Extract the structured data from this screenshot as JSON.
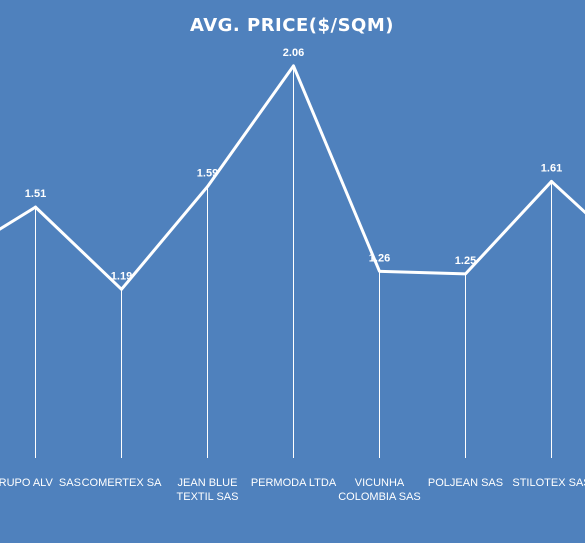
{
  "chart_data": {
    "type": "line",
    "title": "AVG. PRICE($/SQM)",
    "categories": [
      "GRUPO ALV SAS",
      "COMERTEX SA",
      "JEAN BLUE TEXTIL SAS",
      "PERMODA LTDA",
      "VICUNHA COLOMBIA SAS",
      "POLJEAN SAS",
      "STILOTEX SAS"
    ],
    "category_lines": [
      [
        "GRUPO ALV SAS"
      ],
      [
        "COMERTEX SA"
      ],
      [
        "JEAN BLUE",
        "TEXTIL SAS"
      ],
      [
        "PERMODA LTDA"
      ],
      [
        "VICUNHA",
        "COLOMBIA SAS"
      ],
      [
        "POLJEAN SAS"
      ],
      [
        "STILOTEX SAS"
      ]
    ],
    "values": [
      1.51,
      1.19,
      1.59,
      2.06,
      1.26,
      1.25,
      1.61
    ],
    "data_labels": [
      "1.51",
      "1.19",
      "1.59",
      "2.06",
      "1.26",
      "1.25",
      "1.61"
    ],
    "line_color": "#ffffff",
    "background_color": "#4f81bd",
    "drop_lines": true,
    "grid": false,
    "legend": "none"
  }
}
